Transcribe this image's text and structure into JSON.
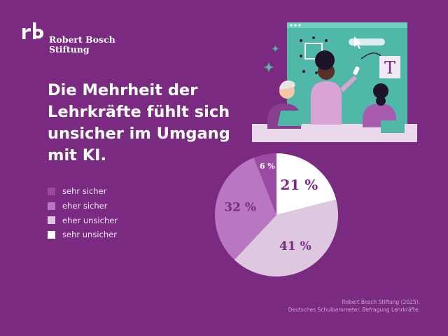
{
  "brand": {
    "line1": "Robert Bosch",
    "line2": "Stiftung",
    "logo_icon": "rb-monogram-icon"
  },
  "headline": {
    "line1": "Die Mehrheit der",
    "line2": "Lehrkräfte fühlt sich",
    "line3": "unsicher im Umgang",
    "line4": "mit KI."
  },
  "chart_data": {
    "type": "pie",
    "title": "Die Mehrheit der Lehrkräfte fühlt sich unsicher im Umgang mit KI.",
    "slices": [
      {
        "label": "sehr unsicher",
        "value": 21,
        "display": "21 %",
        "color": "#ffffff",
        "text_color": "#7a2a80"
      },
      {
        "label": "eher unsicher",
        "value": 41,
        "display": "41 %",
        "color": "#ddc8df",
        "text_color": "#7a2a80"
      },
      {
        "label": "eher sicher",
        "value": 32,
        "display": "32 %",
        "color": "#b877c0",
        "text_color": "#7a2a80"
      },
      {
        "label": "sehr sicher",
        "value": 6,
        "display": "6 %",
        "color": "#9a4aa3",
        "text_color": "#ffffff"
      }
    ],
    "legend": {
      "placement": "left",
      "order": [
        "sehr sicher",
        "eher sicher",
        "eher unsicher",
        "sehr unsicher"
      ]
    },
    "unit": "%"
  },
  "source": {
    "line1": "Robert Bosch Stiftung (2025).",
    "line2": "Deutsches Schulbarometer. Befragung Lehrkräfte."
  },
  "illustration": {
    "name": "teachers-with-screen-illustration",
    "screen_letter": "T"
  },
  "colors": {
    "background": "#7a2a80",
    "screen": "#4fb8a8"
  }
}
